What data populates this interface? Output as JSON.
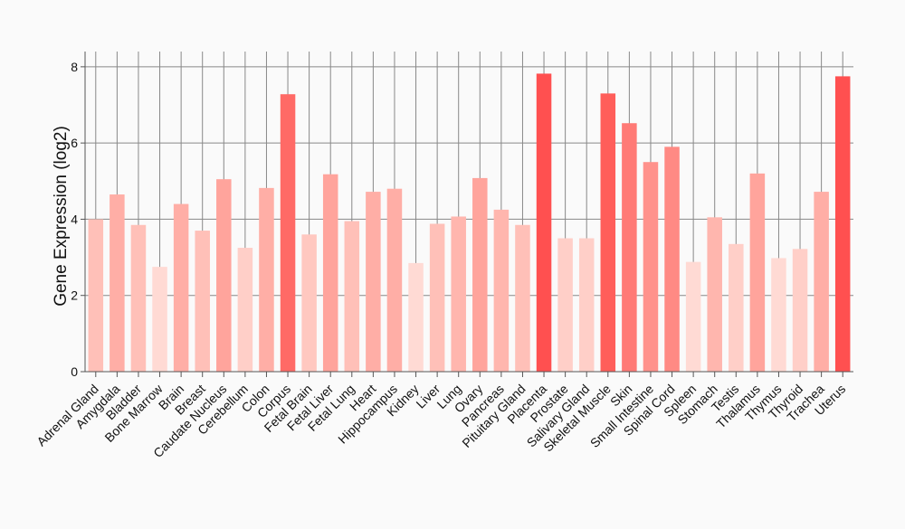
{
  "chart_data": {
    "type": "bar",
    "title": "",
    "xlabel": "",
    "ylabel": "Gene Expression (log2)",
    "ylim": [
      0,
      8.4
    ],
    "yticks": [
      0,
      2,
      4,
      6,
      8
    ],
    "grid": true,
    "categories": [
      "Adrenal Gland",
      "Amygdala",
      "Bladder",
      "Bone Marrow",
      "Brain",
      "Breast",
      "Caudate Nucleus",
      "Cerebellum",
      "Colon",
      "Corpus",
      "Fetal Brain",
      "Fetal Liver",
      "Fetal Lung",
      "Heart",
      "Hippocampus",
      "Kidney",
      "Liver",
      "Lung",
      "Ovary",
      "Pancreas",
      "Pituitary Gland",
      "Placenta",
      "Prostate",
      "Salivary Gland",
      "Skeletal Muscle",
      "Skin",
      "Small Intestine",
      "Spinal Cord",
      "Spleen",
      "Stomach",
      "Testis",
      "Thalamus",
      "Thymus",
      "Thyroid",
      "Trachea",
      "Uterus"
    ],
    "values": [
      4.0,
      4.65,
      3.85,
      2.75,
      4.4,
      3.7,
      5.05,
      3.25,
      4.82,
      7.28,
      3.6,
      5.18,
      3.95,
      4.72,
      4.8,
      2.85,
      3.88,
      4.07,
      5.08,
      4.25,
      3.85,
      7.82,
      3.5,
      3.5,
      7.3,
      6.52,
      5.5,
      5.9,
      2.88,
      4.05,
      3.35,
      5.2,
      2.98,
      3.22,
      4.72,
      7.75
    ],
    "colors": [
      "#ffc0b8",
      "#ffaea6",
      "#ffc0b8",
      "#ffdad4",
      "#ffaea6",
      "#ffc0b8",
      "#ffa49c",
      "#ffcfc8",
      "#ffaea6",
      "#ff6a66",
      "#ffc8c0",
      "#ffa49c",
      "#ffc0b8",
      "#ffaea6",
      "#ffaea6",
      "#ffdad4",
      "#ffc0b8",
      "#ffb6ae",
      "#ffa49c",
      "#ffb6ae",
      "#ffc0b8",
      "#ff5050",
      "#ffcfc8",
      "#ffcfc8",
      "#ff5e5a",
      "#ff7a76",
      "#ff928c",
      "#ff8a84",
      "#ffdad4",
      "#ffb6ae",
      "#ffcfc8",
      "#ffa49c",
      "#ffdad4",
      "#ffcfc8",
      "#ffaea6",
      "#ff5050"
    ],
    "grid_color": "#888888",
    "axis_color": "#555555"
  }
}
